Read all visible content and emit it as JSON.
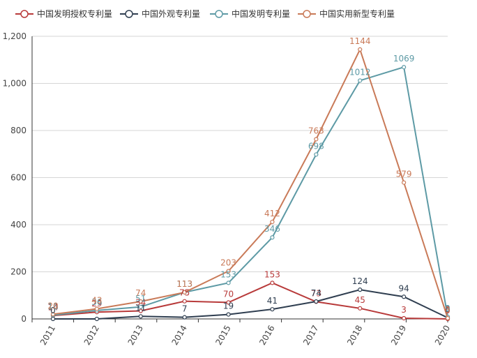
{
  "chart_data": {
    "type": "line",
    "x": [
      "2011",
      "2012",
      "2013",
      "2014",
      "2015",
      "2016",
      "2017",
      "2018",
      "2019",
      "2020"
    ],
    "ylim": [
      0,
      1200
    ],
    "yticks": [
      0,
      200,
      400,
      600,
      800,
      1000,
      1200
    ],
    "ytick_labels": [
      "0",
      "200",
      "400",
      "600",
      "800",
      "1,000",
      "1,200"
    ],
    "grid": "horizontal",
    "legend_position": "top-left",
    "series": [
      {
        "name": "中国发明授权专利量",
        "color": "#b83a3a",
        "values": [
          14,
          29,
          34,
          75,
          70,
          153,
          73,
          45,
          3,
          0
        ],
        "labels": [
          "14",
          "29",
          "34",
          "75",
          "70",
          "153",
          "73",
          "45",
          "3",
          "0"
        ]
      },
      {
        "name": "中国外观专利量",
        "color": "#2f3e50",
        "values": [
          0,
          0,
          11,
          7,
          19,
          41,
          74,
          124,
          94,
          5
        ],
        "labels": [
          "0",
          "",
          "11",
          "7",
          "19",
          "41",
          "74",
          "124",
          "94",
          "5"
        ]
      },
      {
        "name": "中国发明专利量",
        "color": "#5d9aa5",
        "values": [
          16,
          36,
          51,
          113,
          153,
          346,
          698,
          1012,
          1069,
          9
        ],
        "labels": [
          "16",
          "36",
          "51",
          "113",
          "153",
          "346",
          "698",
          "1012",
          "1069",
          "9"
        ]
      },
      {
        "name": "中国实用新型专利量",
        "color": "#c97a58",
        "values": [
          20,
          43,
          74,
          113,
          203,
          412,
          763,
          1144,
          579,
          3
        ],
        "labels": [
          "20",
          "43",
          "74",
          "113",
          "203",
          "412",
          "763",
          "1144",
          "579",
          "3"
        ]
      }
    ]
  }
}
